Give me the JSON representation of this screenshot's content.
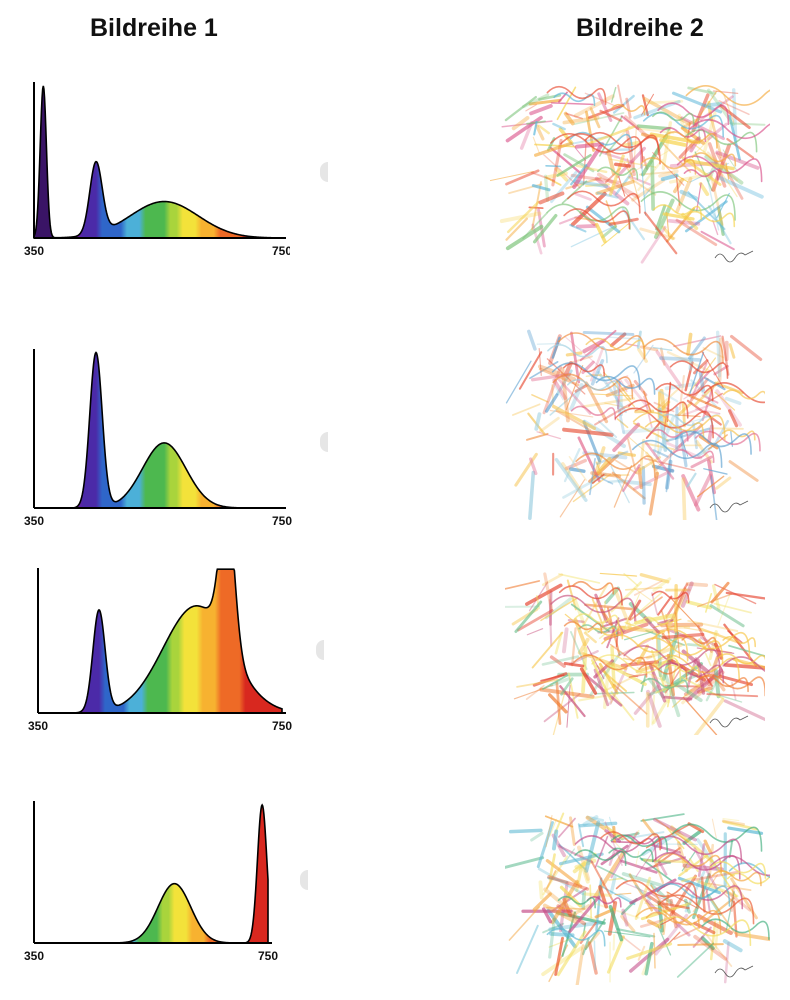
{
  "headers": {
    "column_1": "Bildreihe 1",
    "column_2": "Bildreihe 2"
  },
  "chart_data": [
    {
      "type": "area",
      "title": "",
      "x_tick_labels": [
        "350",
        "750"
      ],
      "xlim": [
        350,
        750
      ],
      "peaks_normalized": [
        {
          "wavelength": 365,
          "intensity": 1.0
        },
        {
          "wavelength": 450,
          "intensity": 0.47
        },
        {
          "wavelength": 560,
          "intensity": 0.24
        }
      ],
      "fill": "spectral-gradient",
      "grid": false
    },
    {
      "type": "area",
      "title": "",
      "x_tick_labels": [
        "350",
        "750"
      ],
      "xlim": [
        350,
        750
      ],
      "peaks_normalized": [
        {
          "wavelength": 450,
          "intensity": 1.0
        },
        {
          "wavelength": 560,
          "intensity": 0.42
        }
      ],
      "fill": "spectral-gradient",
      "grid": false
    },
    {
      "type": "area",
      "title": "",
      "x_tick_labels": [
        "350",
        "750"
      ],
      "xlim": [
        350,
        750
      ],
      "peaks_normalized": [
        {
          "wavelength": 450,
          "intensity": 0.72
        },
        {
          "wavelength": 610,
          "intensity": 0.76
        },
        {
          "wavelength": 660,
          "intensity": 1.0
        }
      ],
      "fill": "spectral-gradient",
      "grid": false
    },
    {
      "type": "area",
      "title": "",
      "x_tick_labels": [
        "350",
        "750"
      ],
      "xlim": [
        350,
        750
      ],
      "peaks_normalized": [
        {
          "wavelength": 590,
          "intensity": 0.43
        },
        {
          "wavelength": 740,
          "intensity": 1.0
        }
      ],
      "fill": "spectral-gradient",
      "grid": false
    }
  ],
  "drawings": [
    {
      "palette": [
        "#e84a2f",
        "#f4a93a",
        "#f6d24a",
        "#7cc47a",
        "#5bb6d9",
        "#d94f88"
      ],
      "caption_icon": "signature-scribble"
    },
    {
      "palette": [
        "#e5452c",
        "#f08a3a",
        "#f6c24a",
        "#9ccfe0",
        "#5a9fd0",
        "#e26a8f"
      ],
      "caption_icon": "signature-scribble"
    },
    {
      "palette": [
        "#e5402b",
        "#f07d33",
        "#f7c443",
        "#f3e26a",
        "#6fc08e",
        "#c8507c"
      ],
      "caption_icon": "signature-scribble"
    },
    {
      "palette": [
        "#e9582d",
        "#f4a33b",
        "#f3dc58",
        "#3fae7c",
        "#59b7d2",
        "#c44a86"
      ],
      "caption_icon": "signature-scribble"
    }
  ]
}
